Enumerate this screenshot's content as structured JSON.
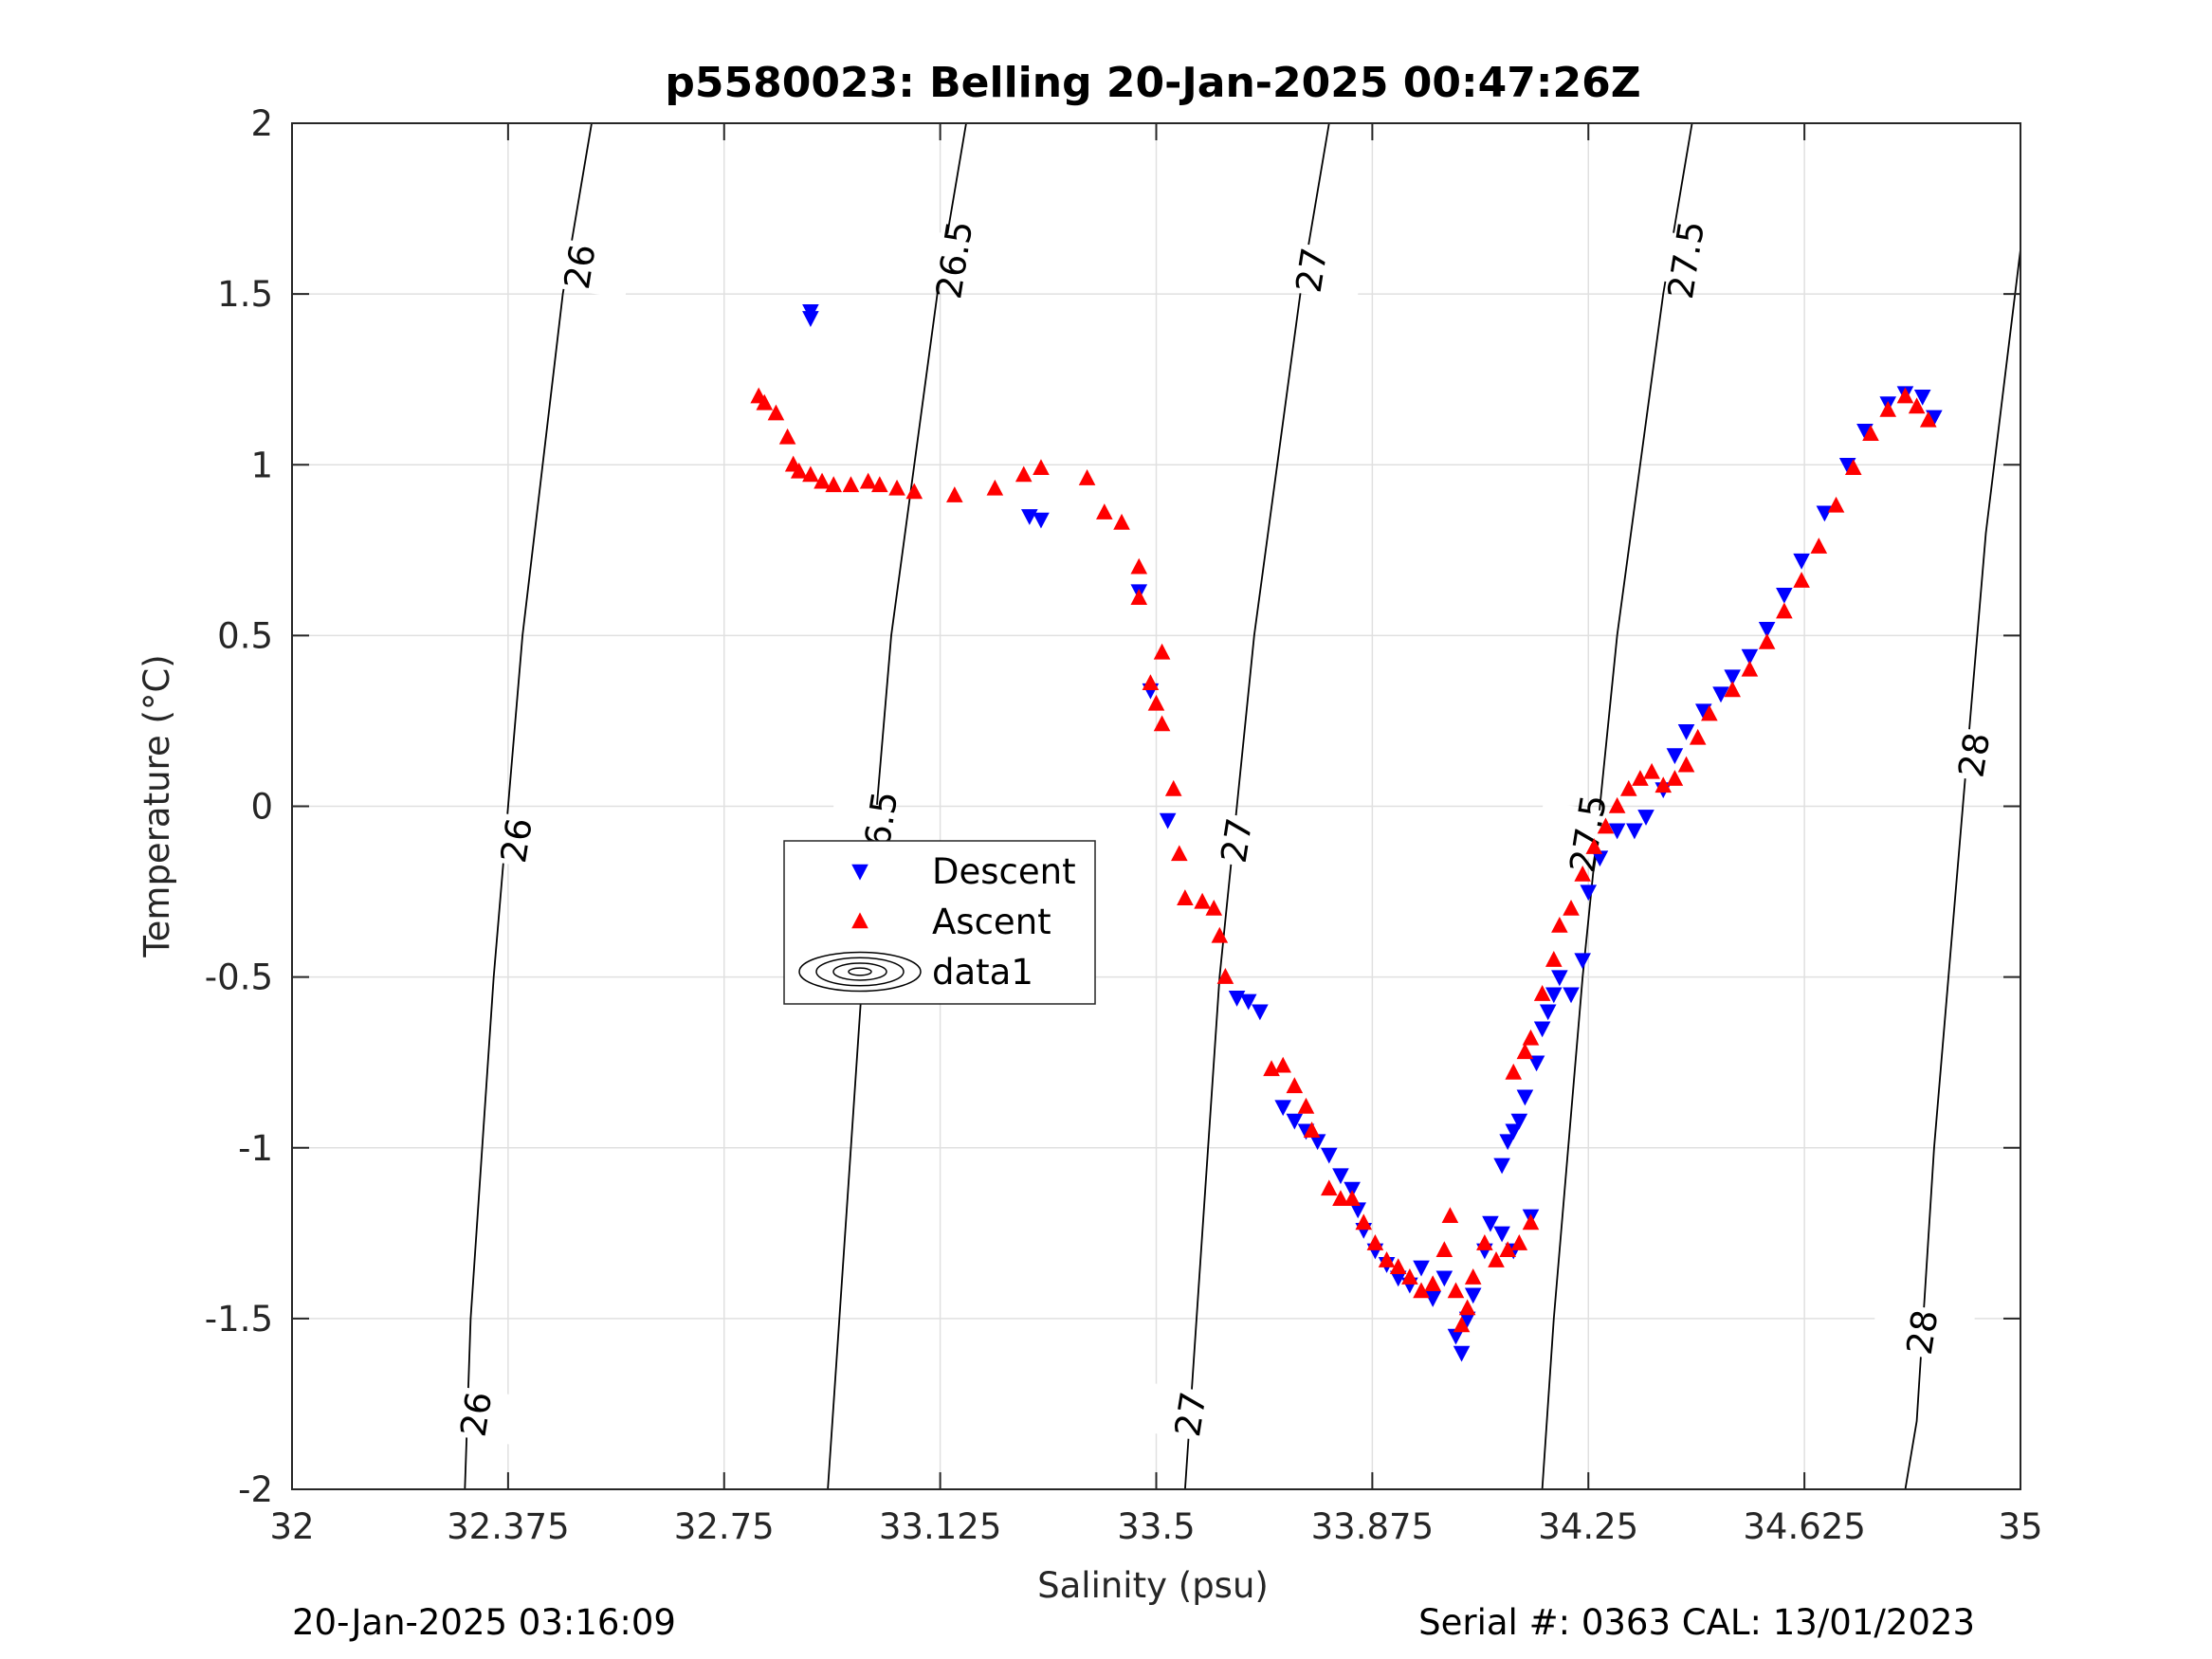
{
  "chart_data": {
    "type": "scatter",
    "title": "p5580023: Belling 20-Jan-2025 00:47:26Z",
    "xlabel": "Salinity (psu)",
    "ylabel": "Temperature (°C)",
    "xlim": [
      32,
      35
    ],
    "ylim": [
      -2,
      2
    ],
    "x_ticks": [
      32,
      32.375,
      32.75,
      33.125,
      33.5,
      33.875,
      34.25,
      34.625,
      35
    ],
    "x_tick_labels": [
      "32",
      "32.375",
      "32.75",
      "33.125",
      "33.5",
      "33.875",
      "34.25",
      "34.625",
      "35"
    ],
    "y_ticks": [
      -2,
      -1.5,
      -1,
      -0.5,
      0,
      0.5,
      1,
      1.5,
      2
    ],
    "y_tick_labels": [
      "-2",
      "-1.5",
      "-1",
      "-0.5",
      "0",
      "0.5",
      "1",
      "1.5",
      "2"
    ],
    "grid": true,
    "legend_position": "center-left",
    "legend": [
      "Descent",
      "Ascent",
      "data1"
    ],
    "colors": {
      "descent": "#0000ff",
      "ascent": "#ff0000",
      "contour": "#000000",
      "grid": "#e0e0e0",
      "axis": "#262626"
    },
    "series": [
      {
        "name": "Descent",
        "marker": "triangle-down",
        "points": [
          [
            32.9,
            1.45
          ],
          [
            32.9,
            1.43
          ],
          [
            33.28,
            0.85
          ],
          [
            33.3,
            0.84
          ],
          [
            33.47,
            0.63
          ],
          [
            33.49,
            0.34
          ],
          [
            33.52,
            -0.04
          ],
          [
            33.64,
            -0.56
          ],
          [
            33.66,
            -0.57
          ],
          [
            33.68,
            -0.6
          ],
          [
            33.72,
            -0.88
          ],
          [
            33.74,
            -0.92
          ],
          [
            33.76,
            -0.95
          ],
          [
            33.78,
            -0.98
          ],
          [
            33.8,
            -1.02
          ],
          [
            33.82,
            -1.08
          ],
          [
            33.84,
            -1.12
          ],
          [
            33.85,
            -1.18
          ],
          [
            33.86,
            -1.24
          ],
          [
            33.88,
            -1.3
          ],
          [
            33.9,
            -1.34
          ],
          [
            33.92,
            -1.38
          ],
          [
            33.94,
            -1.4
          ],
          [
            33.96,
            -1.35
          ],
          [
            33.98,
            -1.44
          ],
          [
            34.0,
            -1.38
          ],
          [
            34.02,
            -1.55
          ],
          [
            34.03,
            -1.6
          ],
          [
            34.04,
            -1.5
          ],
          [
            34.05,
            -1.43
          ],
          [
            34.07,
            -1.3
          ],
          [
            34.08,
            -1.22
          ],
          [
            34.1,
            -1.25
          ],
          [
            34.12,
            -1.3
          ],
          [
            34.15,
            -1.2
          ],
          [
            34.1,
            -1.05
          ],
          [
            34.11,
            -0.98
          ],
          [
            34.12,
            -0.95
          ],
          [
            34.13,
            -0.92
          ],
          [
            34.14,
            -0.85
          ],
          [
            34.16,
            -0.75
          ],
          [
            34.17,
            -0.65
          ],
          [
            34.18,
            -0.6
          ],
          [
            34.19,
            -0.55
          ],
          [
            34.2,
            -0.5
          ],
          [
            34.22,
            -0.55
          ],
          [
            34.24,
            -0.45
          ],
          [
            34.25,
            -0.25
          ],
          [
            34.27,
            -0.15
          ],
          [
            34.3,
            -0.07
          ],
          [
            34.33,
            -0.07
          ],
          [
            34.35,
            -0.03
          ],
          [
            34.38,
            0.05
          ],
          [
            34.4,
            0.15
          ],
          [
            34.42,
            0.22
          ],
          [
            34.45,
            0.28
          ],
          [
            34.48,
            0.33
          ],
          [
            34.5,
            0.38
          ],
          [
            34.53,
            0.44
          ],
          [
            34.56,
            0.52
          ],
          [
            34.59,
            0.62
          ],
          [
            34.62,
            0.72
          ],
          [
            34.66,
            0.86
          ],
          [
            34.7,
            1.0
          ],
          [
            34.73,
            1.1
          ],
          [
            34.77,
            1.18
          ],
          [
            34.8,
            1.21
          ],
          [
            34.83,
            1.2
          ],
          [
            34.85,
            1.14
          ]
        ]
      },
      {
        "name": "Ascent",
        "marker": "triangle-up",
        "points": [
          [
            32.81,
            1.2
          ],
          [
            32.82,
            1.18
          ],
          [
            32.84,
            1.15
          ],
          [
            32.86,
            1.08
          ],
          [
            32.87,
            1.0
          ],
          [
            32.88,
            0.98
          ],
          [
            32.9,
            0.97
          ],
          [
            32.92,
            0.95
          ],
          [
            32.94,
            0.94
          ],
          [
            32.97,
            0.94
          ],
          [
            33.0,
            0.95
          ],
          [
            33.02,
            0.94
          ],
          [
            33.05,
            0.93
          ],
          [
            33.08,
            0.92
          ],
          [
            33.15,
            0.91
          ],
          [
            33.22,
            0.93
          ],
          [
            33.27,
            0.97
          ],
          [
            33.3,
            0.99
          ],
          [
            33.38,
            0.96
          ],
          [
            33.41,
            0.86
          ],
          [
            33.44,
            0.83
          ],
          [
            33.47,
            0.7
          ],
          [
            33.47,
            0.61
          ],
          [
            33.49,
            0.36
          ],
          [
            33.5,
            0.3
          ],
          [
            33.51,
            0.45
          ],
          [
            33.51,
            0.24
          ],
          [
            33.53,
            0.05
          ],
          [
            33.54,
            -0.14
          ],
          [
            33.55,
            -0.27
          ],
          [
            33.58,
            -0.28
          ],
          [
            33.6,
            -0.3
          ],
          [
            33.61,
            -0.38
          ],
          [
            33.62,
            -0.5
          ],
          [
            33.7,
            -0.77
          ],
          [
            33.72,
            -0.76
          ],
          [
            33.74,
            -0.82
          ],
          [
            33.76,
            -0.88
          ],
          [
            33.77,
            -0.95
          ],
          [
            33.8,
            -1.12
          ],
          [
            33.82,
            -1.15
          ],
          [
            33.84,
            -1.15
          ],
          [
            33.86,
            -1.22
          ],
          [
            33.88,
            -1.28
          ],
          [
            33.9,
            -1.33
          ],
          [
            33.92,
            -1.35
          ],
          [
            33.94,
            -1.38
          ],
          [
            33.96,
            -1.42
          ],
          [
            33.98,
            -1.4
          ],
          [
            34.0,
            -1.3
          ],
          [
            34.01,
            -1.2
          ],
          [
            34.02,
            -1.42
          ],
          [
            34.03,
            -1.52
          ],
          [
            34.04,
            -1.47
          ],
          [
            34.05,
            -1.38
          ],
          [
            34.07,
            -1.28
          ],
          [
            34.09,
            -1.33
          ],
          [
            34.11,
            -1.3
          ],
          [
            34.13,
            -1.28
          ],
          [
            34.15,
            -1.22
          ],
          [
            34.12,
            -0.78
          ],
          [
            34.14,
            -0.72
          ],
          [
            34.15,
            -0.68
          ],
          [
            34.17,
            -0.55
          ],
          [
            34.19,
            -0.45
          ],
          [
            34.2,
            -0.35
          ],
          [
            34.22,
            -0.3
          ],
          [
            34.24,
            -0.2
          ],
          [
            34.26,
            -0.12
          ],
          [
            34.28,
            -0.06
          ],
          [
            34.3,
            0.0
          ],
          [
            34.32,
            0.05
          ],
          [
            34.34,
            0.08
          ],
          [
            34.36,
            0.1
          ],
          [
            34.38,
            0.06
          ],
          [
            34.4,
            0.08
          ],
          [
            34.42,
            0.12
          ],
          [
            34.44,
            0.2
          ],
          [
            34.46,
            0.27
          ],
          [
            34.5,
            0.34
          ],
          [
            34.53,
            0.4
          ],
          [
            34.56,
            0.48
          ],
          [
            34.59,
            0.57
          ],
          [
            34.62,
            0.66
          ],
          [
            34.65,
            0.76
          ],
          [
            34.68,
            0.88
          ],
          [
            34.71,
            0.99
          ],
          [
            34.74,
            1.09
          ],
          [
            34.77,
            1.16
          ],
          [
            34.8,
            1.2
          ],
          [
            34.82,
            1.17
          ],
          [
            34.84,
            1.13
          ]
        ]
      },
      {
        "name": "data1",
        "type": "contour",
        "levels": [
          {
            "label": "26",
            "points": [
              [
                32.52,
                2.0
              ],
              [
                32.47,
                1.5
              ],
              [
                32.4,
                0.5
              ],
              [
                32.35,
                -0.5
              ],
              [
                32.31,
                -1.5
              ],
              [
                32.3,
                -2.0
              ]
            ],
            "label_positions": [
              [
                32.5,
                1.58
              ],
              [
                32.39,
                -0.1
              ],
              [
                32.32,
                -1.78
              ]
            ]
          },
          {
            "label": "26.5",
            "points": [
              [
                33.17,
                2.0
              ],
              [
                33.12,
                1.5
              ],
              [
                33.04,
                0.5
              ],
              [
                32.99,
                -0.5
              ],
              [
                32.95,
                -1.5
              ],
              [
                32.93,
                -2.0
              ]
            ],
            "label_positions": [
              [
                33.15,
                1.6
              ],
              [
                33.02,
                -0.07
              ]
            ]
          },
          {
            "label": "27",
            "points": [
              [
                33.8,
                2.0
              ],
              [
                33.75,
                1.5
              ],
              [
                33.67,
                0.5
              ],
              [
                33.61,
                -0.5
              ],
              [
                33.57,
                -1.5
              ],
              [
                33.55,
                -2.0
              ]
            ],
            "label_positions": [
              [
                33.77,
                1.57
              ],
              [
                33.64,
                -0.1
              ],
              [
                33.56,
                -1.78
              ]
            ]
          },
          {
            "label": "27.5",
            "points": [
              [
                34.43,
                2.0
              ],
              [
                34.38,
                1.5
              ],
              [
                34.3,
                0.5
              ],
              [
                34.24,
                -0.5
              ],
              [
                34.19,
                -1.5
              ],
              [
                34.17,
                -2.0
              ]
            ],
            "label_positions": [
              [
                34.42,
                1.6
              ],
              [
                34.25,
                -0.08
              ]
            ]
          },
          {
            "label": "28",
            "points": [
              [
                35.0,
                1.63
              ],
              [
                34.94,
                0.8
              ],
              [
                34.9,
                0.0
              ],
              [
                34.85,
                -1.0
              ],
              [
                34.82,
                -1.8
              ],
              [
                34.8,
                -2.0
              ]
            ],
            "label_positions": [
              [
                34.92,
                0.15
              ],
              [
                34.83,
                -1.54
              ]
            ]
          }
        ]
      }
    ]
  },
  "footer": {
    "timestamp": "20-Jan-2025 03:16:09",
    "serial": "Serial #: 0363  CAL: 13/01/2023"
  }
}
